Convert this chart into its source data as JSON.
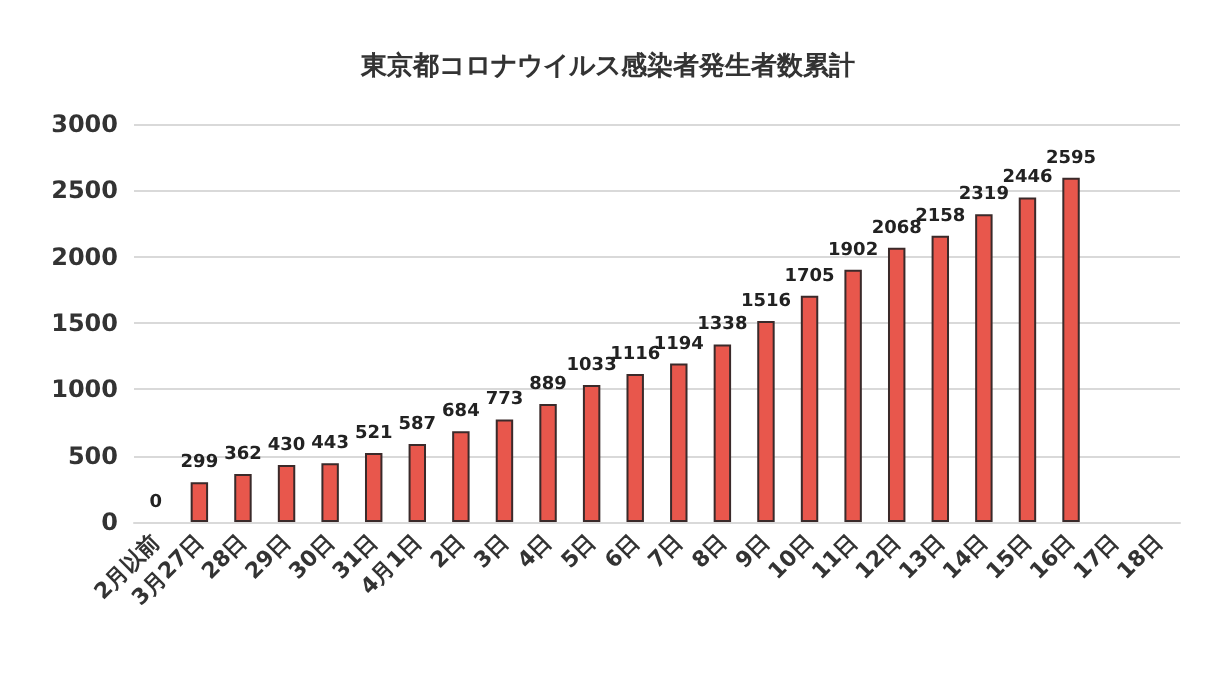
{
  "chart_data": {
    "type": "bar",
    "title": "東京都コロナウイルス感染者発生者数累計",
    "categories": [
      "2月以前",
      "3月27日",
      "28日",
      "29日",
      "30日",
      "31日",
      "4月1日",
      "2日",
      "3日",
      "4日",
      "5日",
      "6日",
      "7日",
      "8日",
      "9日",
      "10日",
      "11日",
      "12日",
      "13日",
      "14日",
      "15日",
      "16日",
      "17日",
      "18日"
    ],
    "values": [
      0,
      299,
      362,
      430,
      443,
      521,
      587,
      684,
      773,
      889,
      1033,
      1116,
      1194,
      1338,
      1516,
      1705,
      1902,
      2068,
      2158,
      2319,
      2446,
      2595,
      null,
      null
    ],
    "color": "#e8574c",
    "ylim": [
      0,
      3000
    ],
    "yticks": [
      0,
      500,
      1000,
      1500,
      2000,
      2500,
      3000
    ],
    "grid": "y",
    "data_labels": true
  }
}
